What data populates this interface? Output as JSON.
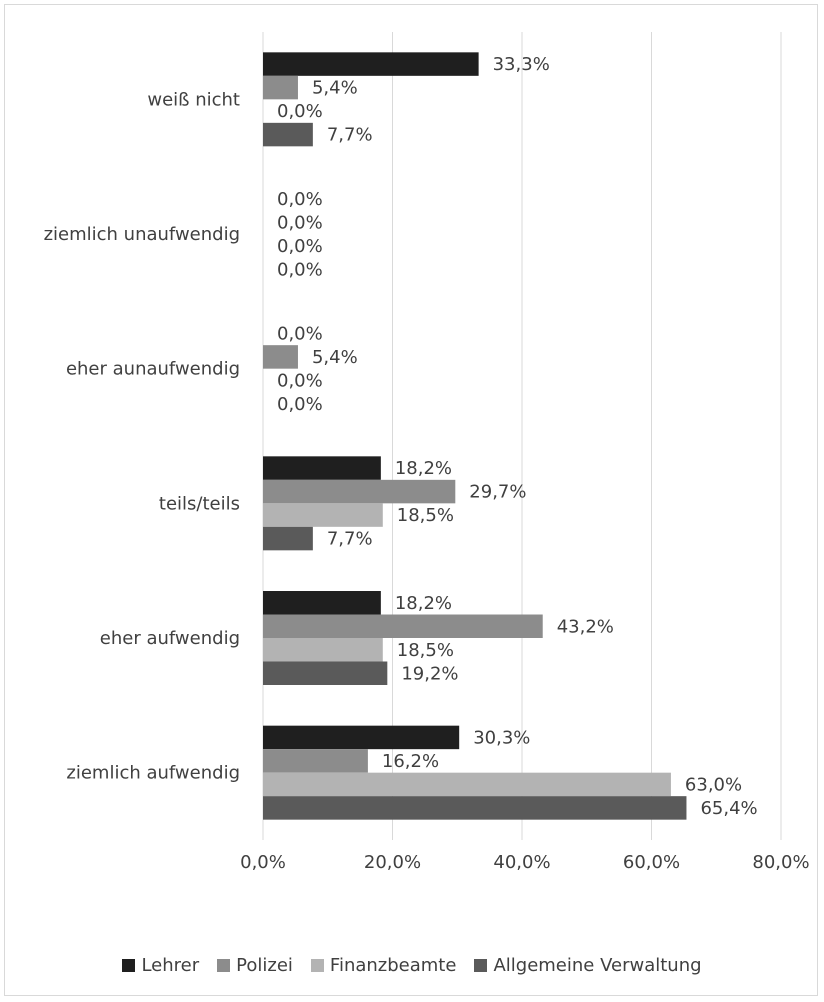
{
  "chart_data": {
    "type": "bar",
    "orientation": "horizontal",
    "categories": [
      "weiß nicht",
      "ziemlich unaufwendig",
      "eher aunaufwendig",
      "teils/teils",
      "eher aufwendig",
      "ziemlich aufwendig"
    ],
    "series": [
      {
        "name": "Lehrer",
        "color": "#1f1f1f",
        "values": [
          33.3,
          0.0,
          0.0,
          18.2,
          18.2,
          30.3
        ],
        "labels": [
          "33,3%",
          "0,0%",
          "0,0%",
          "18,2%",
          "18,2%",
          "30,3%"
        ]
      },
      {
        "name": "Polizei",
        "color": "#8c8c8c",
        "values": [
          5.4,
          0.0,
          5.4,
          29.7,
          43.2,
          16.2
        ],
        "labels": [
          "5,4%",
          "0,0%",
          "5,4%",
          "29,7%",
          "43,2%",
          "16,2%"
        ]
      },
      {
        "name": "Finanzbeamte",
        "color": "#b3b3b3",
        "values": [
          0.0,
          0.0,
          0.0,
          18.5,
          18.5,
          63.0
        ],
        "labels": [
          "0,0%",
          "0,0%",
          "0,0%",
          "18,5%",
          "18,5%",
          "63,0%"
        ]
      },
      {
        "name": "Allgemeine Verwaltung",
        "color": "#5a5a5a",
        "values": [
          7.7,
          0.0,
          0.0,
          7.7,
          19.2,
          65.4
        ],
        "labels": [
          "7,7%",
          "0,0%",
          "0,0%",
          "7,7%",
          "19,2%",
          "65,4%"
        ]
      }
    ],
    "xlim": [
      0,
      80
    ],
    "xticks": [
      0,
      20,
      40,
      60,
      80
    ],
    "xtick_labels": [
      "0,0%",
      "20,0%",
      "40,0%",
      "60,0%",
      "80,0%"
    ],
    "grid": "vertical",
    "legend_position": "bottom",
    "gridline_color": "#d9d9d9"
  }
}
